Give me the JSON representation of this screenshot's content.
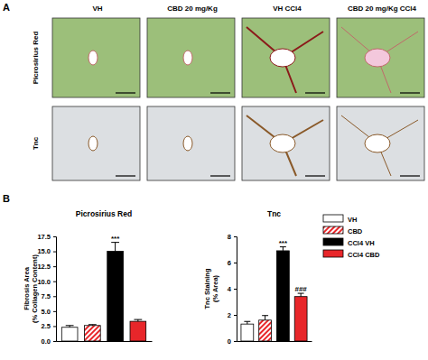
{
  "figure": {
    "panel_labels": [
      "A",
      "B"
    ],
    "micrograph_columns": [
      "VH",
      "CBD 20 mg/Kg",
      "VH CCl4",
      "CBD 20 mg/Kg CCl4"
    ],
    "micrograph_rows": [
      "Picrosirius Red",
      "Tnc"
    ]
  },
  "chart_data": [
    {
      "type": "bar",
      "title": "Picrosirius Red",
      "y_label": "Fibrosis Area (% Collagen Content)",
      "categories": [
        "VH",
        "CBD",
        "CCl4 VH",
        "CCl4 CBD"
      ],
      "values": [
        2.3,
        2.6,
        15.0,
        3.3
      ],
      "errors": [
        0.3,
        0.15,
        1.5,
        0.3
      ],
      "colors": [
        "#ffffff",
        "#e8262a",
        "#000000",
        "#e8262a"
      ],
      "ylim": [
        0,
        17.5
      ],
      "yticks": [
        {
          "value": 0,
          "label": "0.0"
        },
        2.5,
        {
          "value": 5,
          "label": "5.0"
        },
        7.5,
        {
          "value": 10,
          "label": "10.0"
        },
        12.5,
        {
          "value": 15,
          "label": "15.0"
        },
        17.5
      ],
      "tick_labels": "y",
      "annotations": [
        {
          "category": "CCl4 VH",
          "text": "***"
        }
      ]
    },
    {
      "type": "bar",
      "title": "Tnc",
      "y_label": "Tnc Staining (% Area)",
      "categories": [
        "VH",
        "CBD",
        "CCl4 VH",
        "CCl4 CBD"
      ],
      "values": [
        1.3,
        1.6,
        6.9,
        3.4
      ],
      "errors": [
        0.2,
        0.35,
        0.3,
        0.25
      ],
      "colors": [
        "#ffffff",
        "#e8262a",
        "#000000",
        "#e8262a"
      ],
      "ylim": [
        0,
        8
      ],
      "yticks": [
        0,
        2,
        4,
        6,
        8
      ],
      "tick_labels": "y",
      "legend": "right",
      "annotations": [
        {
          "category": "CCl4 VH",
          "text": "***"
        },
        {
          "category": "CCl4 CBD",
          "text": "###"
        }
      ]
    }
  ]
}
